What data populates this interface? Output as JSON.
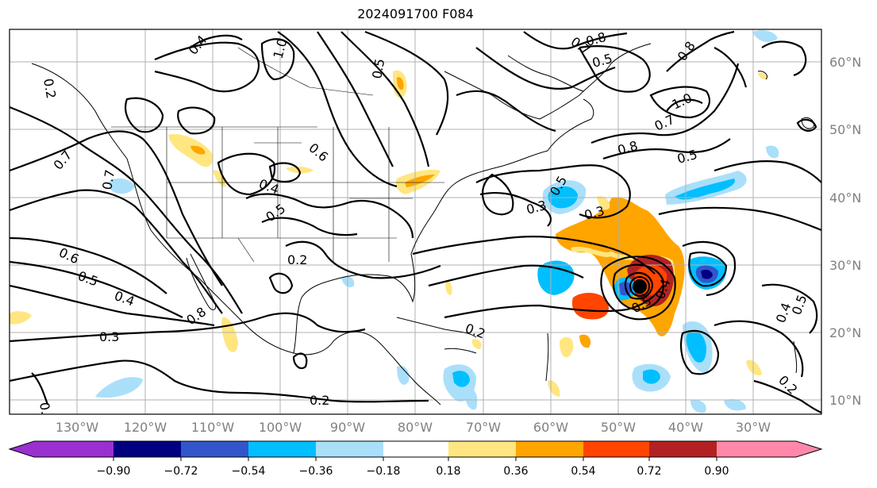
{
  "title": "2024091700 F084",
  "lon_labels": [
    "130°W",
    "120°W",
    "110°W",
    "100°W",
    "90°W",
    "80°W",
    "70°W",
    "60°W",
    "50°W",
    "40°W",
    "30°W"
  ],
  "lat_labels": [
    "60°N",
    "50°N",
    "40°N",
    "30°N",
    "20°N",
    "10°N"
  ],
  "colorbar": {
    "ticks": [
      "−0.90",
      "−0.72",
      "−0.54",
      "−0.36",
      "−0.18",
      "0.18",
      "0.36",
      "0.54",
      "0.72",
      "0.90"
    ],
    "colors": [
      "#9b30d0",
      "#000080",
      "#3355cc",
      "#00bfff",
      "#aadffa",
      "#ffffff",
      "#ffe680",
      "#ffa500",
      "#ff4500",
      "#b22222",
      "#ff88aa"
    ]
  },
  "contour_labels": [
    "0.4",
    "0.2",
    "1.0",
    "0.5",
    "0.7",
    "0.8",
    "0.5",
    "0.8",
    "1.0",
    "0.7",
    "0.8",
    "0.5",
    "0.5",
    "0.7",
    "0.6",
    "0.4",
    "0.5",
    "0.2",
    "0.7",
    "0.3",
    "0.6",
    "0.5",
    "0.4",
    "0.8",
    "0.3",
    "0.2",
    "0.2",
    "0.2",
    "0.4",
    "0.5",
    "0.2",
    "0.5",
    "0.3",
    "0.4"
  ]
}
